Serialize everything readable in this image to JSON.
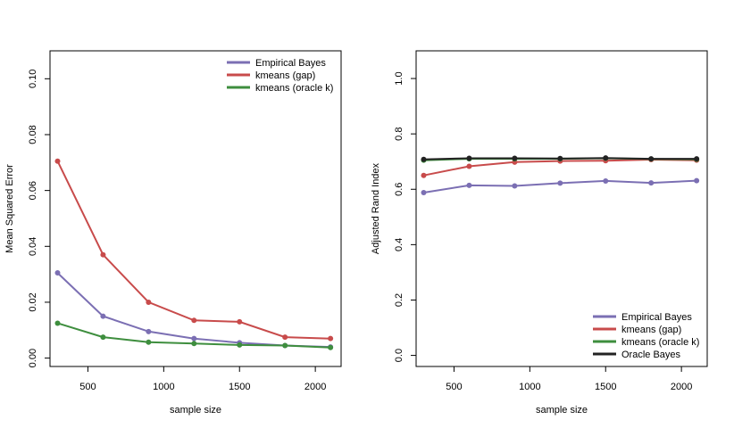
{
  "chart_data": [
    {
      "type": "line",
      "title": "",
      "xlabel": "sample size",
      "ylabel": "Mean Squared Error",
      "x": [
        300,
        600,
        900,
        1200,
        1500,
        1800,
        2100
      ],
      "xlim": [
        250,
        2170
      ],
      "ylim": [
        -0.003,
        0.11
      ],
      "xticks": [
        "500",
        "1000",
        "1500",
        "2000"
      ],
      "yticks": [
        "0.00",
        "0.02",
        "0.04",
        "0.06",
        "0.08",
        "0.10"
      ],
      "grid": false,
      "legend_position": "top-right",
      "series": [
        {
          "name": "Empirical Bayes",
          "color": "#7b6fb3",
          "values": [
            0.0305,
            0.015,
            0.0095,
            0.007,
            0.0055,
            0.0045,
            0.004
          ]
        },
        {
          "name": "kmeans (gap)",
          "color": "#c84b4b",
          "values": [
            0.0705,
            0.037,
            0.02,
            0.0135,
            0.013,
            0.0075,
            0.007
          ]
        },
        {
          "name": "kmeans (oracle k)",
          "color": "#3e8e3e",
          "values": [
            0.0125,
            0.0075,
            0.0057,
            0.0052,
            0.0047,
            0.0045,
            0.0038
          ]
        }
      ]
    },
    {
      "type": "line",
      "title": "",
      "xlabel": "sample size",
      "ylabel": "Adjusted Rand Index",
      "x": [
        300,
        600,
        900,
        1200,
        1500,
        1800,
        2100
      ],
      "xlim": [
        250,
        2170
      ],
      "ylim": [
        -0.04,
        1.1
      ],
      "xticks": [
        "500",
        "1000",
        "1500",
        "2000"
      ],
      "yticks": [
        "0.0",
        "0.2",
        "0.4",
        "0.6",
        "0.8",
        "1.0"
      ],
      "grid": false,
      "legend_position": "bottom-right",
      "series": [
        {
          "name": "Empirical Bayes",
          "color": "#7b6fb3",
          "values": [
            0.588,
            0.614,
            0.612,
            0.622,
            0.63,
            0.623,
            0.631
          ]
        },
        {
          "name": "kmeans (gap)",
          "color": "#c84b4b",
          "values": [
            0.65,
            0.683,
            0.698,
            0.702,
            0.703,
            0.707,
            0.705
          ]
        },
        {
          "name": "kmeans (oracle k)",
          "color": "#3e8e3e",
          "values": [
            0.705,
            0.71,
            0.71,
            0.71,
            0.712,
            0.709,
            0.708
          ]
        },
        {
          "name": "Oracle Bayes",
          "color": "#222222",
          "values": [
            0.708,
            0.712,
            0.712,
            0.711,
            0.713,
            0.71,
            0.71
          ]
        }
      ]
    }
  ]
}
